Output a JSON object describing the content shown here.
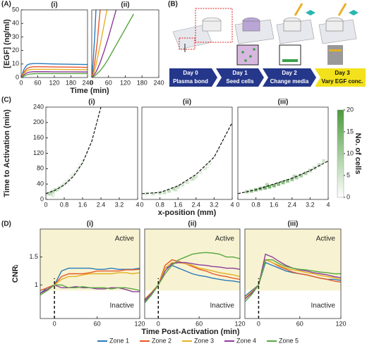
{
  "panel_labels": [
    "(A)",
    "(B)",
    "(C)",
    "(D)"
  ],
  "diagram": {
    "steps": [
      {
        "day": "Day 0",
        "label": "Plasma bond"
      },
      {
        "day": "Day 1",
        "label": "Seed cells"
      },
      {
        "day": "Day 2",
        "label": "Change media"
      },
      {
        "day": "Day 3",
        "label": "Vary EGF conc."
      }
    ]
  },
  "chart_data": [
    {
      "type": "line",
      "title": "(i)",
      "ylabel": "[EGF] (ng/ml)",
      "xlabel": "Time (min)",
      "x": [
        0,
        10,
        20,
        30,
        45,
        60,
        90,
        120,
        180,
        240
      ],
      "xlim": [
        0,
        240
      ],
      "xticks": [
        0,
        60,
        120,
        180,
        240
      ],
      "ylim": [
        0,
        50
      ],
      "yticks": [
        0,
        10,
        20,
        30,
        40,
        50
      ],
      "series": [
        {
          "color": "#2a7ab9",
          "values": [
            0,
            6,
            9,
            10,
            10.3,
            10.3,
            10.2,
            10,
            9.8,
            9.6
          ]
        },
        {
          "color": "#e8582a",
          "values": [
            0,
            4,
            6.5,
            7.5,
            8,
            8,
            7.9,
            7.8,
            7.7,
            7.5
          ]
        },
        {
          "color": "#e5b022",
          "values": [
            0,
            3,
            5,
            5.8,
            6.1,
            6.1,
            6,
            6,
            5.9,
            5.8
          ]
        },
        {
          "color": "#8e3c9b",
          "values": [
            0,
            2,
            3.4,
            4,
            4.3,
            4.3,
            4.3,
            4.2,
            4.2,
            4.1
          ]
        },
        {
          "color": "#5aa843",
          "values": [
            0,
            1,
            2,
            2.5,
            2.8,
            2.9,
            2.9,
            2.9,
            2.9,
            2.9
          ]
        }
      ]
    },
    {
      "type": "line",
      "title": "(ii)",
      "x": [
        0,
        5,
        10,
        15,
        20,
        30,
        45,
        60,
        90,
        120,
        150,
        180
      ],
      "xlim": [
        0,
        240
      ],
      "xticks": [
        0,
        60,
        120,
        180,
        240
      ],
      "ylim": [
        0,
        50
      ],
      "series": [
        {
          "color": "#2a7ab9",
          "values": [
            0,
            12,
            28,
            50,
            null,
            null,
            null,
            null,
            null,
            null,
            null,
            null
          ]
        },
        {
          "color": "#e8582a",
          "values": [
            0,
            4,
            10,
            18,
            27,
            50,
            null,
            null,
            null,
            null,
            null,
            null
          ]
        },
        {
          "color": "#e5b022",
          "values": [
            0,
            2,
            5,
            9,
            14,
            24,
            40,
            56,
            null,
            null,
            null,
            null
          ]
        },
        {
          "color": "#8e3c9b",
          "values": [
            0,
            1,
            2.5,
            4,
            6,
            11,
            20,
            30,
            52,
            null,
            null,
            null
          ]
        },
        {
          "color": "#5aa843",
          "values": [
            0,
            0.5,
            1,
            2,
            3,
            5,
            9,
            14,
            25,
            36,
            47,
            null
          ]
        }
      ]
    },
    {
      "type": "heatmap",
      "title": "(i)",
      "ylabel": "Time to Activation (min)",
      "xlabel": "x-position (mm)",
      "xlim": [
        0,
        4
      ],
      "xticks": [
        0,
        0.8,
        1.6,
        2.4,
        3.2,
        4
      ],
      "ylim": [
        0,
        240
      ],
      "yticks": [
        0,
        40,
        80,
        120,
        160,
        200,
        240
      ],
      "cells": {
        "x": [
          0.1,
          0.2,
          0.3,
          0.4,
          0.5,
          0.6,
          0.8,
          0.9,
          1.0,
          1.2,
          1.3,
          1.5,
          1.6,
          1.8,
          2.0,
          2.2,
          0.3,
          0.7,
          1.1,
          1.4
        ],
        "y": [
          15,
          15,
          20,
          25,
          25,
          30,
          40,
          45,
          50,
          65,
          70,
          90,
          100,
          120,
          150,
          190,
          10,
          35,
          60,
          80
        ],
        "counts": [
          6,
          5,
          7,
          5,
          4,
          4,
          3,
          3,
          3,
          2,
          2,
          2,
          2,
          1,
          1,
          1,
          3,
          3,
          2,
          2
        ]
      },
      "fit": {
        "x": [
          0,
          0.4,
          0.8,
          1.2,
          1.6,
          2.0,
          2.4
        ],
        "y": [
          15,
          23.8,
          37.8,
          60,
          95,
          151,
          240
        ]
      }
    },
    {
      "type": "heatmap",
      "title": "(ii)",
      "xlim": [
        0,
        4
      ],
      "xticks": [
        0,
        0.8,
        1.6,
        2.4,
        3.2,
        4
      ],
      "ylim": [
        0,
        240
      ],
      "cells": {
        "x": [
          0.2,
          0.5,
          0.8,
          1.0,
          1.2,
          1.4,
          1.6,
          1.8,
          2.0,
          2.2,
          2.4,
          2.6,
          2.8,
          3.0,
          3.2,
          3.4,
          3.6,
          1.5,
          2.3,
          2.9
        ],
        "y": [
          15,
          15,
          17,
          18,
          22,
          28,
          33,
          38,
          45,
          52,
          60,
          70,
          80,
          95,
          110,
          130,
          150,
          25,
          55,
          85
        ],
        "counts": [
          4,
          5,
          6,
          6,
          7,
          6,
          6,
          5,
          5,
          4,
          4,
          3,
          3,
          3,
          2,
          2,
          1,
          4,
          4,
          2
        ]
      },
      "fit": {
        "x": [
          0,
          0.8,
          1.6,
          2.4,
          3.2,
          4
        ],
        "y": [
          15,
          18,
          35,
          65,
          110,
          200
        ]
      }
    },
    {
      "type": "heatmap",
      "title": "(iii)",
      "xlim": [
        0,
        4
      ],
      "xticks": [
        0,
        0.8,
        1.6,
        2.4,
        3.2,
        4
      ],
      "ylim": [
        0,
        240
      ],
      "cells": {
        "x": [
          0.4,
          0.6,
          0.8,
          1.0,
          1.2,
          1.4,
          1.6,
          1.8,
          2.0,
          2.2,
          2.4,
          2.6,
          2.8,
          3.0,
          3.2,
          3.4,
          3.6,
          3.8,
          1.3,
          2.5
        ],
        "y": [
          20,
          22,
          25,
          28,
          30,
          33,
          36,
          40,
          44,
          48,
          52,
          57,
          62,
          68,
          75,
          82,
          90,
          100,
          38,
          60
        ],
        "counts": [
          8,
          10,
          12,
          14,
          15,
          15,
          14,
          13,
          13,
          12,
          11,
          10,
          10,
          9,
          8,
          7,
          6,
          5,
          8,
          7
        ]
      },
      "fit": {
        "x": [
          0,
          0.8,
          1.6,
          2.4,
          3.2,
          4
        ],
        "y": [
          15,
          25,
          40,
          55,
          75,
          100
        ]
      },
      "colorbar": {
        "lim": [
          0,
          20
        ],
        "ticks": [
          0,
          5,
          10,
          15,
          20
        ],
        "label": "No. of cells",
        "color": "#4a9a3a"
      }
    },
    {
      "type": "line",
      "title": "(i)",
      "ylabel": "CNRᵢ",
      "xlabel": "Time Post-Activation (min)",
      "active_label": "Active",
      "inactive_label": "Inactive",
      "shade_above": 0.9,
      "shade_color": "#f7f3d2",
      "marker_x": 0,
      "x": [
        -20,
        -10,
        0,
        10,
        20,
        30,
        40,
        50,
        60,
        70,
        80,
        90,
        100,
        110,
        120
      ],
      "xlim": [
        -20,
        120
      ],
      "xticks": [
        0,
        60,
        120
      ],
      "ylim": [
        0.4,
        2.0
      ],
      "yticks": [
        1,
        1.5
      ],
      "series": [
        {
          "name": "Zone 1",
          "color": "#2a7ab9",
          "values": [
            0.85,
            0.95,
            1.0,
            1.25,
            1.3,
            1.3,
            1.3,
            1.3,
            1.28,
            1.28,
            1.3,
            1.28,
            1.28,
            1.28,
            1.3
          ]
        },
        {
          "name": "Zone 2",
          "color": "#e8582a",
          "values": [
            0.9,
            0.95,
            1.0,
            1.15,
            1.2,
            1.2,
            1.2,
            1.22,
            1.25,
            1.25,
            1.25,
            1.25,
            1.27,
            1.27,
            1.28
          ]
        },
        {
          "name": "Zone 3",
          "color": "#e5b022",
          "values": [
            0.85,
            0.9,
            1.0,
            1.1,
            1.15,
            1.15,
            1.18,
            1.2,
            1.2,
            1.2,
            1.2,
            1.22,
            1.22,
            1.2,
            1.22
          ]
        },
        {
          "name": "Zone 4",
          "color": "#8e3c9b",
          "values": [
            0.85,
            0.92,
            1.0,
            0.95,
            0.95,
            0.97,
            0.95,
            0.95,
            0.93,
            0.93,
            0.95,
            0.95,
            0.92,
            0.88,
            0.88
          ]
        },
        {
          "name": "Zone 5",
          "color": "#5aa843",
          "values": [
            0.82,
            0.9,
            1.0,
            1.0,
            0.95,
            0.95,
            0.97,
            0.95,
            0.95,
            0.95,
            0.93,
            0.95,
            0.95,
            0.93,
            0.9
          ]
        }
      ]
    },
    {
      "type": "line",
      "title": "(ii)",
      "active_label": "Active",
      "inactive_label": "Inactive",
      "shade_above": 0.9,
      "shade_color": "#f7f3d2",
      "marker_x": 0,
      "x": [
        -20,
        -10,
        0,
        10,
        20,
        30,
        40,
        50,
        60,
        70,
        80,
        90,
        100,
        110,
        120
      ],
      "xlim": [
        -20,
        120
      ],
      "xticks": [
        0,
        60,
        120
      ],
      "ylim": [
        0.4,
        2.0
      ],
      "series": [
        {
          "color": "#2a7ab9",
          "values": [
            0.7,
            0.85,
            1.0,
            1.3,
            1.35,
            1.3,
            1.25,
            1.2,
            1.17,
            1.15,
            1.12,
            1.1,
            1.08,
            1.07,
            1.05
          ]
        },
        {
          "color": "#e8582a",
          "values": [
            0.72,
            0.85,
            1.0,
            1.35,
            1.45,
            1.42,
            1.38,
            1.33,
            1.28,
            1.25,
            1.2,
            1.17,
            1.15,
            1.12,
            1.1
          ]
        },
        {
          "color": "#e5b022",
          "values": [
            0.75,
            0.87,
            1.0,
            1.3,
            1.4,
            1.4,
            1.38,
            1.35,
            1.3,
            1.28,
            1.25,
            1.22,
            1.2,
            1.18,
            1.15
          ]
        },
        {
          "color": "#8e3c9b",
          "values": [
            0.73,
            0.85,
            1.0,
            1.25,
            1.38,
            1.4,
            1.4,
            1.38,
            1.36,
            1.35,
            1.33,
            1.32,
            1.3,
            1.3,
            1.28
          ]
        },
        {
          "color": "#5aa843",
          "values": [
            0.68,
            0.82,
            1.0,
            1.2,
            1.35,
            1.45,
            1.5,
            1.55,
            1.57,
            1.58,
            1.57,
            1.55,
            1.5,
            1.5,
            1.47
          ]
        }
      ]
    },
    {
      "type": "line",
      "title": "(iii)",
      "active_label": "Active",
      "inactive_label": "Inactive",
      "shade_above": 0.9,
      "shade_color": "#f7f3d2",
      "marker_x": 0,
      "x": [
        -20,
        -10,
        0,
        10,
        20,
        30,
        40,
        50,
        60,
        70,
        80,
        90,
        100,
        110,
        120
      ],
      "xlim": [
        -20,
        120
      ],
      "xticks": [
        0,
        60,
        120
      ],
      "ylim": [
        0.4,
        2.0
      ],
      "series": [
        {
          "color": "#2a7ab9",
          "values": [
            0.8,
            0.9,
            1.0,
            1.4,
            1.35,
            1.3,
            1.25,
            1.22,
            1.2,
            1.18,
            1.15,
            1.12,
            1.1,
            1.1,
            1.08
          ]
        },
        {
          "color": "#e8582a",
          "values": [
            0.75,
            0.85,
            1.0,
            1.45,
            1.4,
            1.33,
            1.28,
            1.23,
            1.2,
            1.18,
            1.15,
            1.12,
            1.1,
            1.07,
            1.05
          ]
        },
        {
          "color": "#e5b022",
          "values": [
            0.78,
            0.88,
            1.0,
            1.45,
            1.4,
            1.35,
            1.3,
            1.27,
            1.25,
            1.22,
            1.2,
            1.17,
            1.15,
            1.13,
            1.1
          ]
        },
        {
          "color": "#8e3c9b",
          "values": [
            0.75,
            0.86,
            1.0,
            1.55,
            1.5,
            1.42,
            1.35,
            1.3,
            1.27,
            1.25,
            1.22,
            1.2,
            1.18,
            1.15,
            1.13
          ]
        },
        {
          "color": "#5aa843",
          "values": [
            0.7,
            0.83,
            1.0,
            1.45,
            1.45,
            1.38,
            1.33,
            1.3,
            1.28,
            1.27,
            1.25,
            1.23,
            1.22,
            1.2,
            1.2
          ]
        }
      ]
    }
  ]
}
